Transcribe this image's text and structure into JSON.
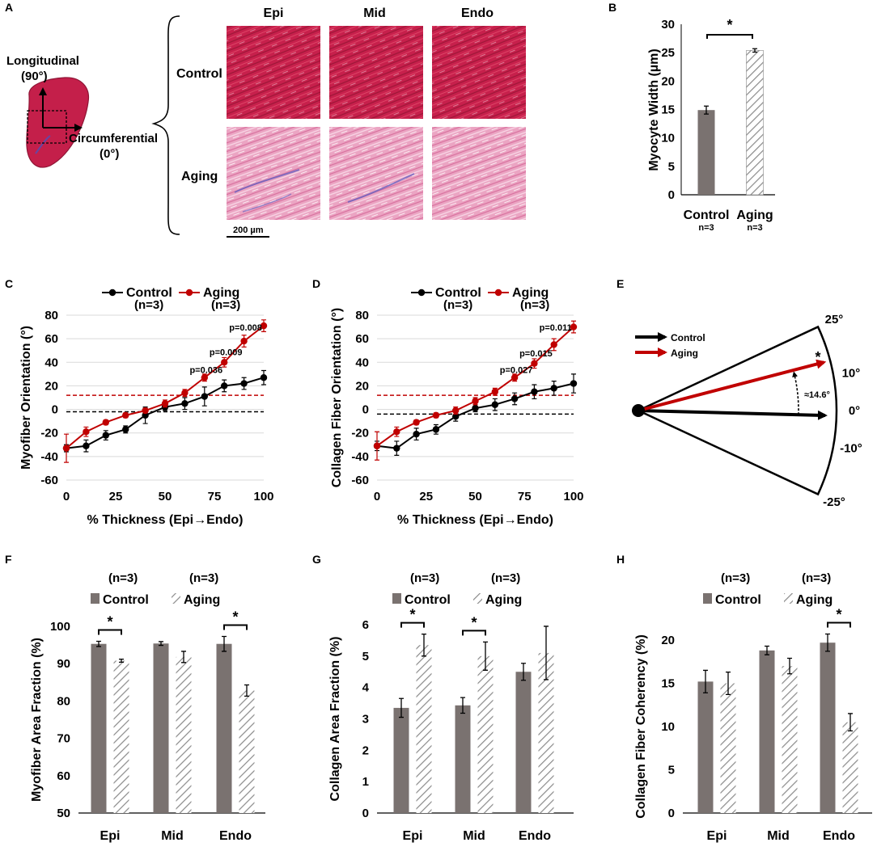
{
  "colors": {
    "control": "#000000",
    "aging": "#c00000",
    "control_bar": "#7a7270",
    "tissue_control": "#c0204a",
    "tissue_aging": "#eea0c0",
    "tissue_dark": "#9a1535",
    "collagen_blue": "#4a4ab0"
  },
  "panel_a": {
    "letter": "A",
    "axis_long_label": "Longitudinal",
    "axis_long_angle": "(90°)",
    "axis_circ_label": "Circumferential",
    "axis_circ_angle": "(0°)",
    "columns": [
      "Epi",
      "Mid",
      "Endo"
    ],
    "rows": [
      "Control",
      "Aging"
    ],
    "scale_bar": "200 µm"
  },
  "panel_b": {
    "letter": "B",
    "chart_data": {
      "type": "bar",
      "ylabel": "Myocyte Width (µm)",
      "ylim": [
        0,
        30
      ],
      "yticks": [
        0,
        5,
        10,
        15,
        20,
        25,
        30
      ],
      "categories": [
        "Control",
        "Aging"
      ],
      "n_labels": [
        "n=3",
        "n=3"
      ],
      "values": [
        14.9,
        25.4
      ],
      "errors": [
        0.7,
        0.3
      ],
      "significance": "*"
    }
  },
  "panel_c": {
    "letter": "C",
    "legend": [
      {
        "name": "Control",
        "n": "(n=3)"
      },
      {
        "name": "Aging",
        "n": "(n=3)"
      }
    ],
    "chart_data": {
      "type": "line",
      "xlabel": "% Thickness (Epi→Endo)",
      "ylabel": "Myofiber Orientation (°)",
      "xlim": [
        0,
        100
      ],
      "ylim": [
        -60,
        80
      ],
      "xticks": [
        0,
        25,
        50,
        75,
        100
      ],
      "yticks": [
        -60,
        -40,
        -20,
        0,
        20,
        40,
        60,
        80
      ],
      "x": [
        0,
        10,
        20,
        30,
        40,
        50,
        60,
        70,
        80,
        90,
        100
      ],
      "series": [
        {
          "name": "Control",
          "values": [
            -33,
            -31,
            -22,
            -17,
            -5,
            2,
            5,
            11,
            20,
            22,
            27
          ],
          "errors": [
            3,
            5,
            4,
            3,
            7,
            3,
            5,
            8,
            5,
            5,
            6
          ],
          "mean_line": -2
        },
        {
          "name": "Aging",
          "values": [
            -33,
            -19,
            -11,
            -5,
            -1,
            5,
            14,
            27,
            40,
            58,
            71
          ],
          "errors": [
            12,
            4,
            2,
            2,
            2,
            3,
            3,
            3,
            4,
            5,
            5
          ],
          "mean_line": 12
        }
      ],
      "annotations": [
        {
          "text": "p=0.036",
          "x": 70,
          "y": 31
        },
        {
          "text": "p=0.009",
          "x": 80,
          "y": 46
        },
        {
          "text": "p=0.008",
          "x": 90,
          "y": 67
        }
      ]
    }
  },
  "panel_d": {
    "letter": "D",
    "legend": [
      {
        "name": "Control",
        "n": "(n=3)"
      },
      {
        "name": "Aging",
        "n": "(n=3)"
      }
    ],
    "chart_data": {
      "type": "line",
      "xlabel": "% Thickness (Epi→Endo)",
      "ylabel": "Collagen Fiber Orientation (°)",
      "xlim": [
        0,
        100
      ],
      "ylim": [
        -60,
        80
      ],
      "xticks": [
        0,
        25,
        50,
        75,
        100
      ],
      "yticks": [
        -60,
        -40,
        -20,
        0,
        20,
        40,
        60,
        80
      ],
      "x": [
        0,
        10,
        20,
        30,
        40,
        50,
        60,
        70,
        80,
        90,
        100
      ],
      "series": [
        {
          "name": "Control",
          "values": [
            -31,
            -33,
            -21,
            -17,
            -6,
            1,
            4,
            9,
            15,
            18,
            22
          ],
          "errors": [
            4,
            6,
            5,
            4,
            4,
            3,
            5,
            5,
            6,
            6,
            8
          ],
          "mean_line": -4
        },
        {
          "name": "Aging",
          "values": [
            -31,
            -19,
            -11,
            -5,
            -1,
            7,
            15,
            27,
            39,
            55,
            70
          ],
          "errors": [
            12,
            4,
            2,
            2,
            3,
            3,
            3,
            3,
            4,
            5,
            5
          ],
          "mean_line": 12
        }
      ],
      "annotations": [
        {
          "text": "p=0.027",
          "x": 70,
          "y": 31
        },
        {
          "text": "p=0.015",
          "x": 80,
          "y": 45
        },
        {
          "text": "p=0.011",
          "x": 90,
          "y": 67
        }
      ]
    }
  },
  "panel_e": {
    "letter": "E",
    "legend": [
      "Control",
      "Aging"
    ],
    "angle_labels": [
      "25°",
      "10°",
      "0°",
      "-10°",
      "-25°"
    ],
    "angle_diff": "≈14.6°",
    "significance": "*",
    "chart_data": {
      "type": "polar",
      "control_angle": 0,
      "aging_angle": 14.6,
      "range": [
        -25,
        25
      ]
    }
  },
  "panel_f": {
    "letter": "F",
    "legend": [
      {
        "name": "Control",
        "n": "(n=3)"
      },
      {
        "name": "Aging",
        "n": "(n=3)"
      }
    ],
    "chart_data": {
      "type": "bar",
      "ylabel": "Myofiber Area Fraction (%)",
      "ylim": [
        50,
        100
      ],
      "yticks": [
        50,
        60,
        70,
        80,
        90,
        100
      ],
      "categories": [
        "Epi",
        "Mid",
        "Endo"
      ],
      "series": [
        {
          "name": "Control",
          "values": [
            95.3,
            95.4,
            95.3
          ],
          "errors": [
            0.7,
            0.5,
            2.0
          ]
        },
        {
          "name": "Aging",
          "values": [
            90.8,
            91.8,
            82.8
          ],
          "errors": [
            0.4,
            1.5,
            1.5
          ]
        }
      ],
      "significance": [
        "*",
        "",
        "*"
      ]
    }
  },
  "panel_g": {
    "letter": "G",
    "legend": [
      {
        "name": "Control",
        "n": "(n=3)"
      },
      {
        "name": "Aging",
        "n": "(n=3)"
      }
    ],
    "chart_data": {
      "type": "bar",
      "ylabel": "Collagen Area Fraction (%)",
      "ylim": [
        0,
        6
      ],
      "yticks": [
        0,
        1,
        2,
        3,
        4,
        5,
        6
      ],
      "categories": [
        "Epi",
        "Mid",
        "Endo"
      ],
      "series": [
        {
          "name": "Control",
          "values": [
            3.35,
            3.43,
            4.5
          ],
          "errors": [
            0.3,
            0.25,
            0.27
          ]
        },
        {
          "name": "Aging",
          "values": [
            5.35,
            5.0,
            5.1
          ],
          "errors": [
            0.35,
            0.45,
            0.85
          ]
        }
      ],
      "significance": [
        "*",
        "*",
        ""
      ]
    }
  },
  "panel_h": {
    "letter": "H",
    "legend": [
      {
        "name": "Control",
        "n": "(n=3)"
      },
      {
        "name": "Aging",
        "n": "(n=3)"
      }
    ],
    "chart_data": {
      "type": "bar",
      "ylabel": "Collagen Fiber Coherency (%)",
      "ylim": [
        0,
        20
      ],
      "yticks": [
        0,
        5,
        10,
        15,
        20
      ],
      "categories": [
        "Epi",
        "Mid",
        "Endo"
      ],
      "series": [
        {
          "name": "Control",
          "values": [
            15.2,
            18.8,
            19.7
          ],
          "errors": [
            1.3,
            0.5,
            1.0
          ]
        },
        {
          "name": "Aging",
          "values": [
            15.0,
            17.0,
            10.5
          ],
          "errors": [
            1.3,
            0.9,
            1.0
          ]
        }
      ],
      "significance": [
        "",
        "",
        "*"
      ]
    }
  }
}
